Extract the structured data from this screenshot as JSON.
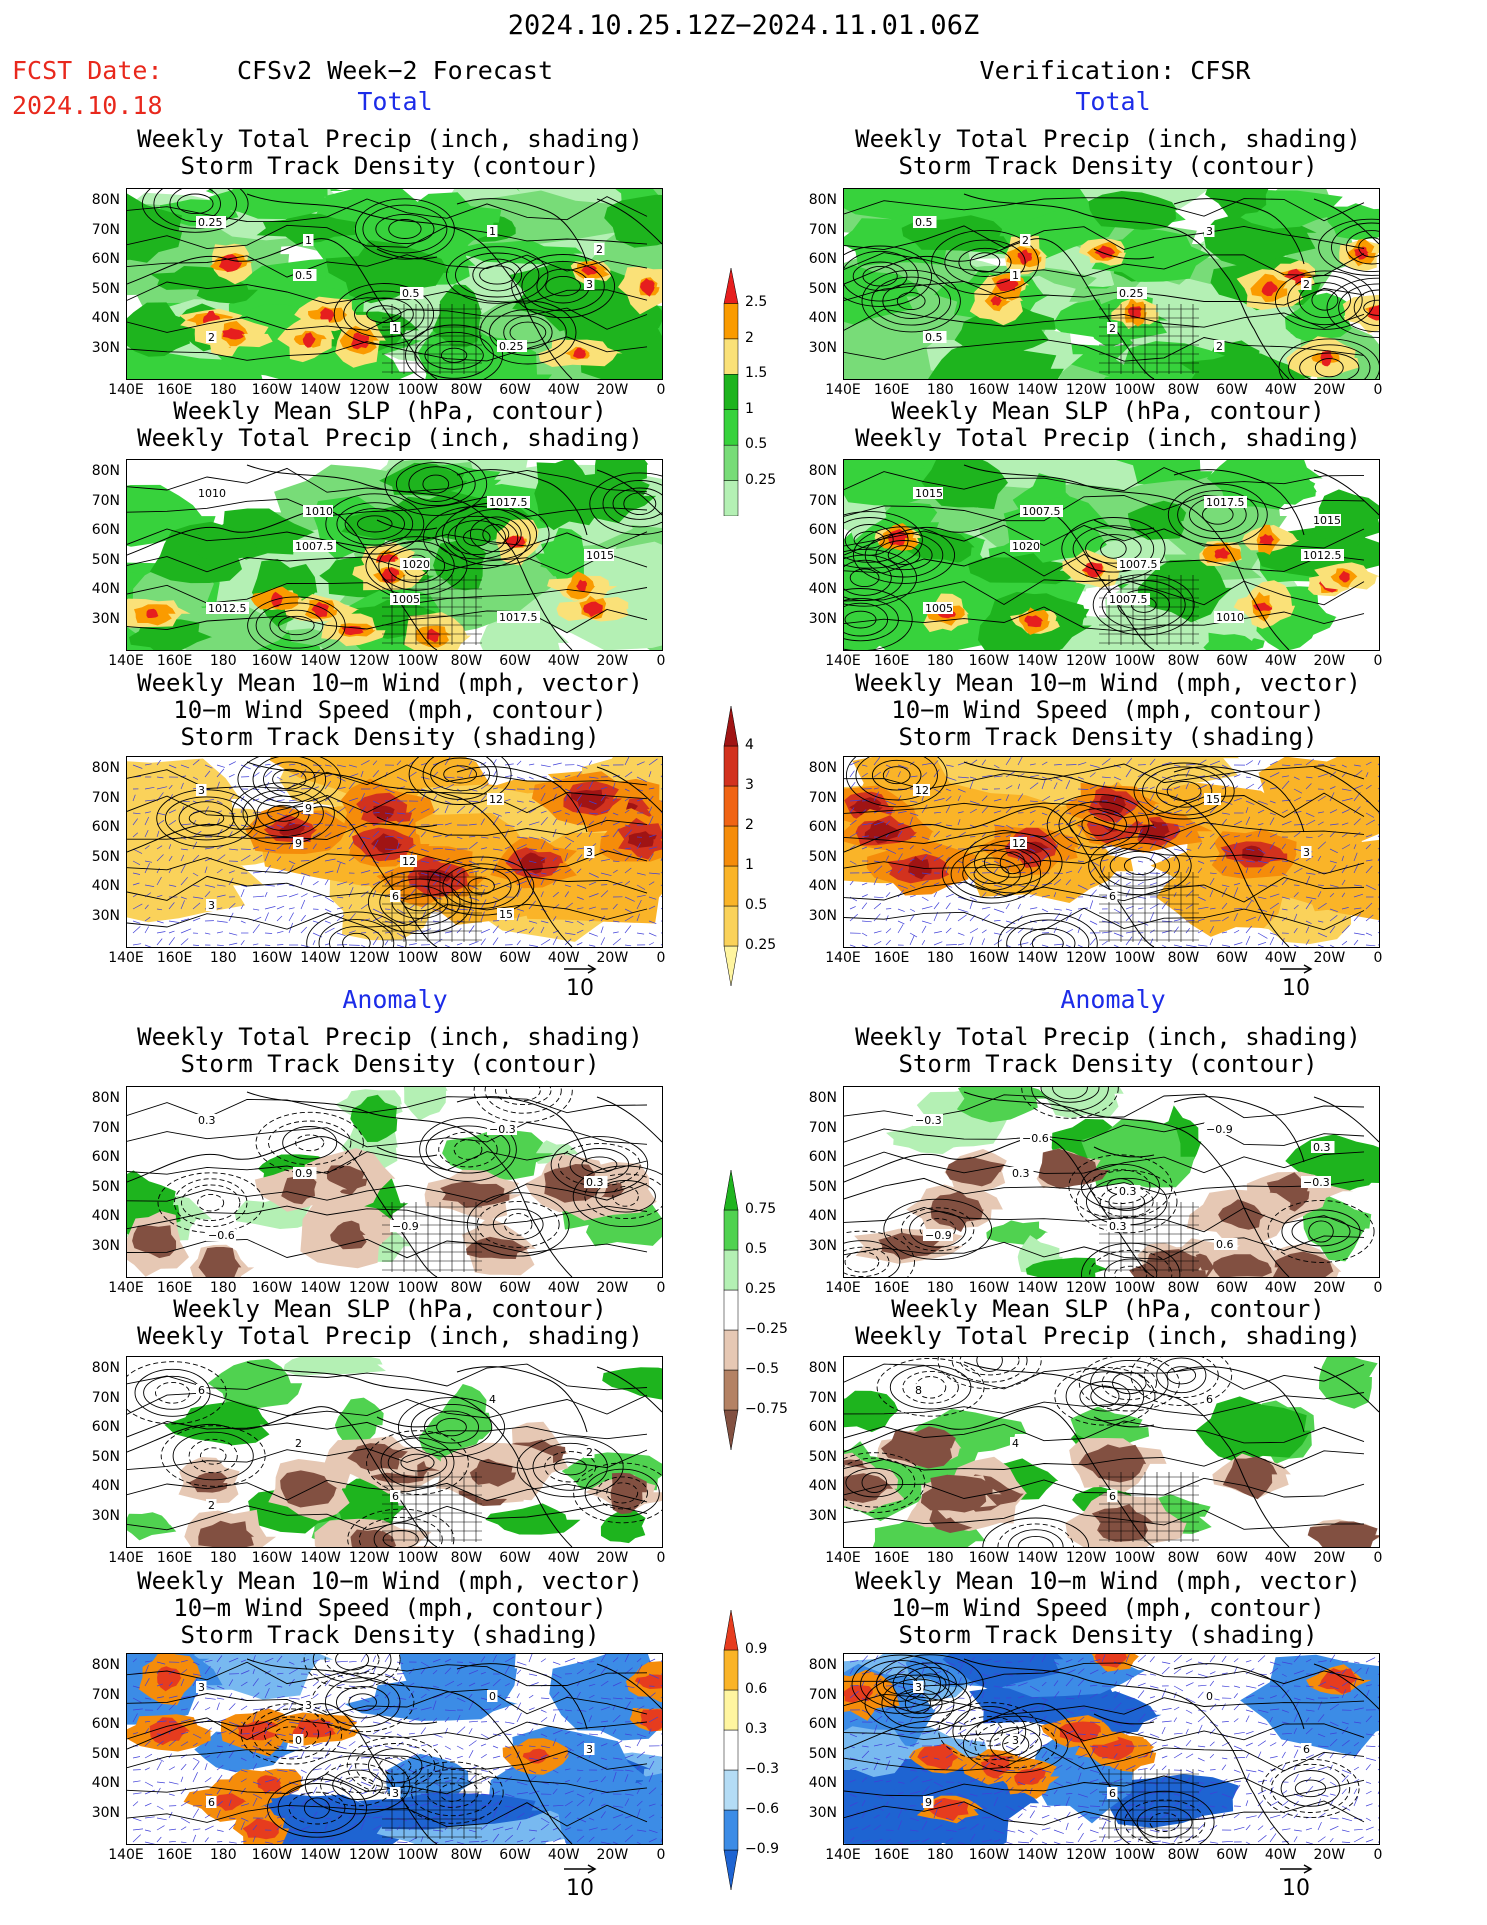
{
  "header": {
    "title": "2024.10.25.12Z−2024.11.01.06Z",
    "fcst_label": "FCST Date:",
    "fcst_date": "2024.10.18",
    "left_title": "CFSv2 Week−2 Forecast",
    "right_title": "Verification: CFSR"
  },
  "sections": {
    "total": "Total",
    "anomaly": "Anomaly"
  },
  "panel_titles": {
    "precip_storm": [
      "Weekly Total Precip (inch, shading)",
      "Storm Track Density (contour)"
    ],
    "slp_precip": [
      "Weekly Mean SLP (hPa, contour)",
      "Weekly Total Precip (inch, shading)"
    ],
    "wind": [
      "Weekly Mean 10−m Wind (mph, vector)",
      "10−m Wind Speed (mph, contour)",
      "Storm Track Density (shading)"
    ]
  },
  "axes": {
    "lat_labels": [
      "80N",
      "70N",
      "60N",
      "50N",
      "40N",
      "30N"
    ],
    "lon_labels": [
      "140E",
      "160E",
      "180",
      "160W",
      "140W",
      "120W",
      "100W",
      "80W",
      "60W",
      "40W",
      "20W",
      "0"
    ]
  },
  "colorbars": {
    "precip_total": [
      "2.5",
      "2",
      "1.5",
      "1",
      "0.5",
      "0.25"
    ],
    "storm_total": [
      "4",
      "3",
      "2",
      "1",
      "0.5",
      "0.25"
    ],
    "precip_anom": [
      "0.75",
      "0.5",
      "0.25",
      "−0.25",
      "−0.5",
      "−0.75"
    ],
    "storm_anom": [
      "0.9",
      "0.6",
      "0.3",
      "−0.3",
      "−0.6",
      "−0.9"
    ]
  },
  "vector_ref": "10",
  "contour_labels": {
    "p1L": [
      "0.25",
      "0.5",
      "1",
      "1",
      "3",
      "2",
      "1",
      "0.5",
      "0.25",
      "2"
    ],
    "p1R": [
      "0.5",
      "1",
      "2",
      "3",
      "2",
      "0.5",
      "2",
      "0.25",
      "2"
    ],
    "p2L": [
      "1010",
      "1007.5",
      "1005",
      "1017.5",
      "1015",
      "1012.5",
      "1010",
      "1020",
      "1017.5"
    ],
    "p2R": [
      "1015",
      "1020",
      "1007.5",
      "1017.5",
      "1012.5",
      "1005",
      "1007.5",
      "1007.5",
      "1010",
      "1015"
    ],
    "p3L": [
      "3",
      "9",
      "6",
      "12",
      "3",
      "3",
      "9",
      "12",
      "15"
    ],
    "p3R": [
      "12",
      "12",
      "6",
      "15",
      "3"
    ],
    "p4L": [
      "0.3",
      "0.9",
      "−0.9",
      "−0.3",
      "0.3",
      "−0.6"
    ],
    "p4R": [
      "−0.3",
      "0.3",
      "0.3",
      "−0.9",
      "−0.3",
      "−0.9",
      "−0.6",
      "0.3",
      "0.6",
      "0.3"
    ],
    "p5L": [
      "6",
      "2",
      "6",
      "4",
      "2",
      "2"
    ],
    "p5R": [
      "8",
      "4",
      "6",
      "6"
    ],
    "p6L": [
      "3",
      "0",
      "3",
      "0",
      "3",
      "6",
      "3"
    ],
    "p6R": [
      "3",
      "3",
      "6",
      "0",
      "6",
      "9"
    ]
  },
  "colors": {
    "precip": [
      "#b4f0b4",
      "#78dc78",
      "#37d23c",
      "#1eb41e",
      "#fae178",
      "#fa9b00",
      "#e61e1e"
    ],
    "storm": [
      "#fff5a0",
      "#fad25a",
      "#fab428",
      "#f58c0a",
      "#f06414",
      "#d2321e",
      "#a01414"
    ],
    "anom_pos": [
      "#b4f0b4",
      "#50d250",
      "#1eb41e"
    ],
    "anom_neg": [
      "#e6c8b4",
      "#b48264",
      "#825041"
    ],
    "blue": [
      "#b4dcf5",
      "#78b9f0",
      "#3c8ce6",
      "#1e64d2"
    ],
    "title_red": "#e8281c",
    "section_blue": "#1c2ce8"
  }
}
